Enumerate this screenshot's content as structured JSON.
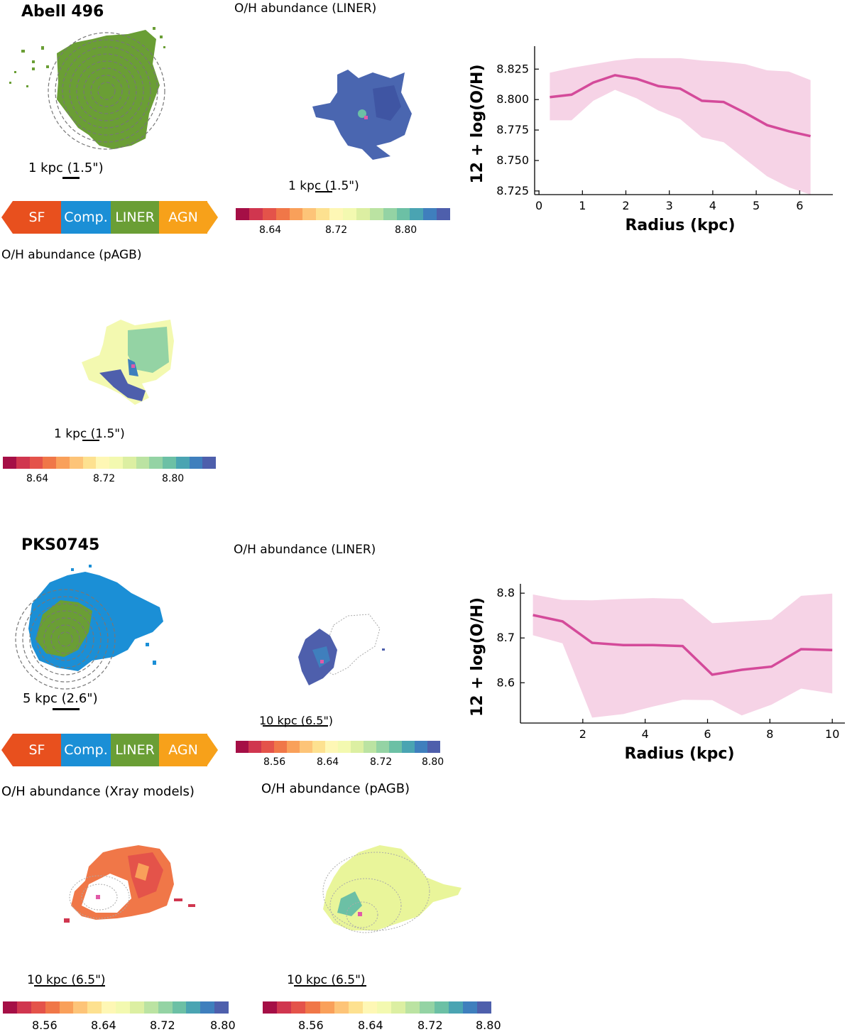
{
  "figure": {
    "galaxy1": {
      "name": "Abell 496",
      "bpt_scale": "1 kpc (1.5\")",
      "liner_title": "O/H abundance (LINER)",
      "liner_scale": "1 kpc (1.5\")",
      "pagb_title": "O/H abundance (pAGB)",
      "pagb_scale": "1 kpc (1.5\")",
      "colorbar_ticks": [
        "8.64",
        "8.72",
        "8.80"
      ]
    },
    "galaxy2": {
      "name": "PKS0745",
      "bpt_scale": "5 kpc (2.6\")",
      "liner_title": "O/H abundance (LINER)",
      "liner_scale": "10 kpc (6.5\")",
      "xray_title": "O/H abundance (Xray models)",
      "xray_scale": "10 kpc (6.5\")",
      "pagb_title": "O/H abundance (pAGB)",
      "pagb_scale": "10 kpc (6.5\")",
      "colorbar_ticks": [
        "8.56",
        "8.64",
        "8.72",
        "8.80"
      ]
    },
    "bpt_legend": [
      "SF",
      "Comp.",
      "LINER",
      "AGN"
    ],
    "colors": {
      "sf": "#e8501e",
      "comp": "#1b8fd6",
      "liner": "#6a9e35",
      "agn": "#f7a11a",
      "profile_line": "#d44a9a",
      "profile_band": "#f6d3e6",
      "colormap": [
        "#a50f46",
        "#d0364f",
        "#e4534a",
        "#f07748",
        "#f9a05a",
        "#fdc478",
        "#fde190",
        "#fef7b5",
        "#f3f9b0",
        "#dcefa2",
        "#bbe3a2",
        "#94d3a4",
        "#6cc0a5",
        "#4aa4b2",
        "#3f7fbd",
        "#4e5fac"
      ]
    }
  },
  "chart_data": [
    {
      "type": "line",
      "title": "",
      "xlabel": "Radius (kpc)",
      "ylabel": "12 + log(O/H)",
      "x": [
        0.25,
        0.75,
        1.25,
        1.75,
        2.25,
        2.75,
        3.25,
        3.75,
        4.25,
        4.75,
        5.25,
        5.75,
        6.25
      ],
      "series": [
        {
          "name": "median",
          "values": [
            8.802,
            8.804,
            8.814,
            8.82,
            8.817,
            8.811,
            8.809,
            8.799,
            8.798,
            8.789,
            8.779,
            8.774,
            8.77
          ]
        },
        {
          "name": "upper",
          "values": [
            8.822,
            8.826,
            8.829,
            8.832,
            8.834,
            8.834,
            8.834,
            8.832,
            8.831,
            8.829,
            8.824,
            8.823,
            8.816
          ]
        },
        {
          "name": "lower",
          "values": [
            8.783,
            8.783,
            8.799,
            8.808,
            8.801,
            8.791,
            8.784,
            8.769,
            8.765,
            8.751,
            8.737,
            8.728,
            8.722
          ]
        }
      ],
      "xlim": [
        -0.1,
        6.6
      ],
      "ylim": [
        8.722,
        8.838
      ],
      "xticks": [
        "0",
        "1",
        "2",
        "3",
        "4",
        "5",
        "6"
      ],
      "yticks": [
        "8.725",
        "8.750",
        "8.775",
        "8.800",
        "8.825"
      ]
    },
    {
      "type": "line",
      "title": "",
      "xlabel": "Radius (kpc)",
      "ylabel": "12 + log(O/H)",
      "x": [
        0.4,
        1.35,
        2.3,
        3.3,
        4.25,
        5.2,
        6.15,
        7.1,
        8.05,
        9.0,
        10.0
      ],
      "series": [
        {
          "name": "median",
          "values": [
            8.751,
            8.737,
            8.689,
            8.684,
            8.684,
            8.682,
            8.618,
            8.629,
            8.636,
            8.675,
            8.673
          ]
        },
        {
          "name": "upper",
          "values": [
            8.797,
            8.785,
            8.784,
            8.787,
            8.789,
            8.787,
            8.733,
            8.737,
            8.741,
            8.794,
            8.799
          ]
        },
        {
          "name": "lower",
          "values": [
            8.706,
            8.688,
            8.522,
            8.53,
            8.547,
            8.562,
            8.561,
            8.527,
            8.551,
            8.587,
            8.576
          ]
        }
      ],
      "xlim": [
        0.0,
        10.2
      ],
      "ylim": [
        8.51,
        8.805
      ],
      "xticks": [
        "2",
        "4",
        "6",
        "8",
        "10"
      ],
      "yticks": [
        "8.6",
        "8.7",
        "8.8"
      ]
    }
  ]
}
